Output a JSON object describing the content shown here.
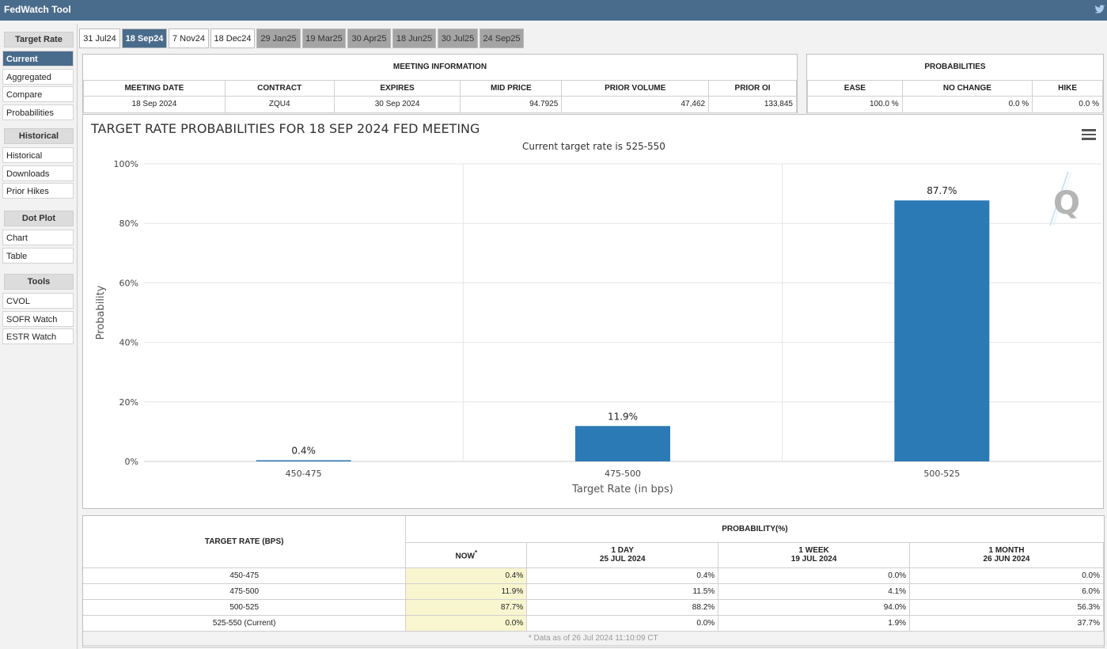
{
  "app": {
    "title": "FedWatch Tool",
    "social_icon": "twitter-icon"
  },
  "sidebar": {
    "sections": [
      {
        "title": "Target Rate",
        "items": [
          {
            "label": "Current",
            "active": true
          },
          {
            "label": "Aggregated"
          },
          {
            "label": "Compare"
          },
          {
            "label": "Probabilities"
          }
        ]
      },
      {
        "title": "Historical",
        "items": [
          {
            "label": "Historical"
          },
          {
            "label": "Downloads"
          },
          {
            "label": "Prior Hikes"
          }
        ]
      },
      {
        "title": "Dot Plot",
        "items": [
          {
            "label": "Chart"
          },
          {
            "label": "Table"
          }
        ]
      },
      {
        "title": "Tools",
        "items": [
          {
            "label": "CVOL"
          },
          {
            "label": "SOFR Watch"
          },
          {
            "label": "ESTR Watch"
          }
        ]
      }
    ]
  },
  "tabs": [
    {
      "label": "31 Jul24",
      "state": "white"
    },
    {
      "label": "18 Sep24",
      "state": "selected"
    },
    {
      "label": "7 Nov24",
      "state": "white"
    },
    {
      "label": "18 Dec24",
      "state": "white"
    },
    {
      "label": "29 Jan25",
      "state": "grey"
    },
    {
      "label": "19 Mar25",
      "state": "grey"
    },
    {
      "label": "30 Apr25",
      "state": "grey"
    },
    {
      "label": "18 Jun25",
      "state": "grey"
    },
    {
      "label": "30 Jul25",
      "state": "grey"
    },
    {
      "label": "24 Sep25",
      "state": "grey"
    }
  ],
  "meeting_info": {
    "title": "MEETING INFORMATION",
    "headers": [
      "MEETING DATE",
      "CONTRACT",
      "EXPIRES",
      "MID PRICE",
      "PRIOR VOLUME",
      "PRIOR OI"
    ],
    "row": [
      "18 Sep 2024",
      "ZQU4",
      "30 Sep 2024",
      "94.7925",
      "47,462",
      "133,845"
    ]
  },
  "probabilities": {
    "title": "PROBABILITIES",
    "headers": [
      "EASE",
      "NO CHANGE",
      "HIKE"
    ],
    "row": [
      "100.0 %",
      "0.0 %",
      "0.0 %"
    ]
  },
  "chart": {
    "menu_icon": "hamburger-menu-icon",
    "watermark": "Q"
  },
  "chart_data": {
    "type": "bar",
    "title": "TARGET RATE PROBABILITIES FOR 18 SEP 2024 FED MEETING",
    "subtitle": "Current target rate is 525-550",
    "xlabel": "Target Rate (in bps)",
    "ylabel": "Probability",
    "categories": [
      "450-475",
      "475-500",
      "500-525"
    ],
    "values": [
      0.4,
      11.9,
      87.7
    ],
    "data_labels": [
      "0.4%",
      "11.9%",
      "87.7%"
    ],
    "ylim": [
      0,
      100
    ],
    "yticks": [
      "0%",
      "20%",
      "40%",
      "60%",
      "80%",
      "100%"
    ],
    "grid": true,
    "color": "#2b7ab6"
  },
  "prob_table": {
    "col0_header": "TARGET RATE (BPS)",
    "group_header": "PROBABILITY(%)",
    "sub_headers": [
      {
        "l1": "NOW",
        "l2": "",
        "star": "*"
      },
      {
        "l1": "1 DAY",
        "l2": "25 JUL 2024",
        "star": ""
      },
      {
        "l1": "1 WEEK",
        "l2": "19 JUL 2024",
        "star": ""
      },
      {
        "l1": "1 MONTH",
        "l2": "26 JUN 2024",
        "star": ""
      }
    ],
    "rows": [
      [
        "450-475",
        "0.4%",
        "0.4%",
        "0.0%",
        "0.0%"
      ],
      [
        "475-500",
        "11.9%",
        "11.5%",
        "4.1%",
        "6.0%"
      ],
      [
        "500-525",
        "87.7%",
        "88.2%",
        "94.0%",
        "56.3%"
      ],
      [
        "525-550 (Current)",
        "0.0%",
        "0.0%",
        "1.9%",
        "37.7%"
      ]
    ],
    "footnote": "* Data as of 26 Jul 2024 11:10:09 CT"
  }
}
